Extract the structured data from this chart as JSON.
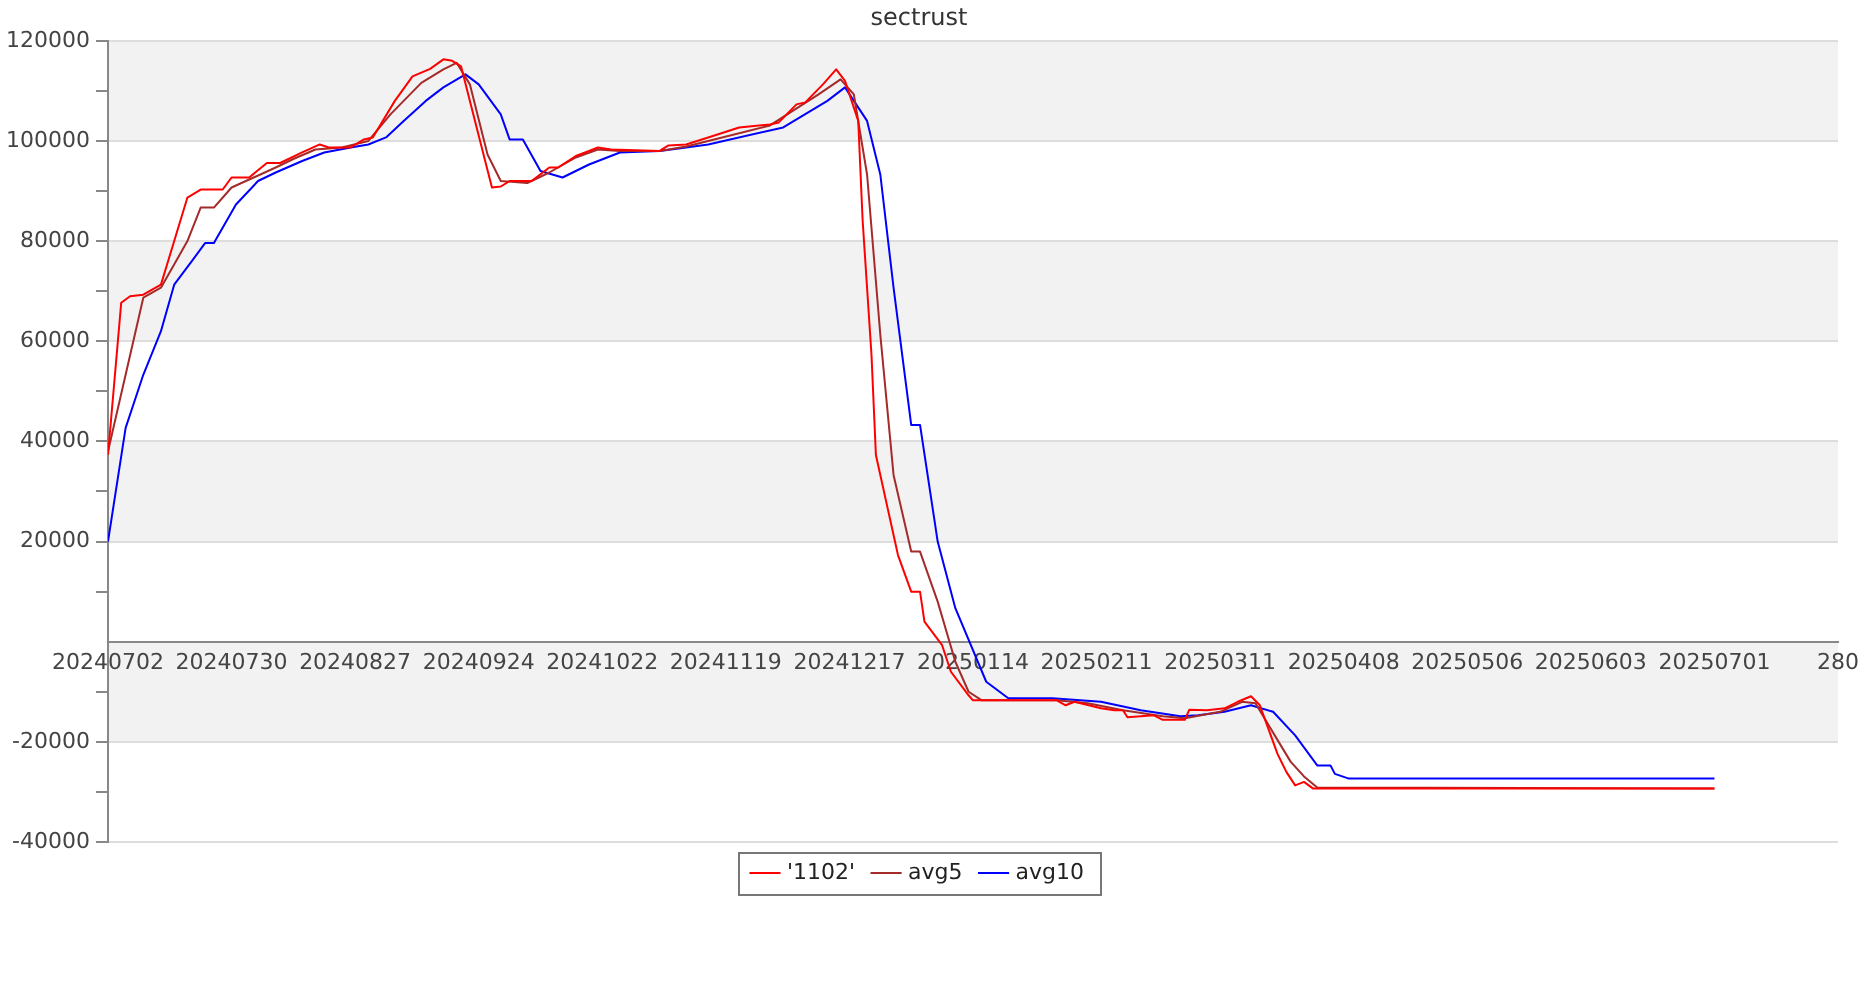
{
  "chart_data": {
    "type": "line",
    "title": "sectrust",
    "legend": "bottom",
    "grid": "y",
    "marker": "none",
    "line_style": "solid",
    "xlim": [
      "2024-07-02",
      "2025-07-29"
    ],
    "xticks": [
      {
        "value": "2024-07-02",
        "label": "20240702"
      },
      {
        "value": "2024-07-30",
        "label": "20240730"
      },
      {
        "value": "2024-08-27",
        "label": "20240827"
      },
      {
        "value": "2024-09-24",
        "label": "20240924"
      },
      {
        "value": "2024-10-22",
        "label": "20241022"
      },
      {
        "value": "2024-11-19",
        "label": "20241119"
      },
      {
        "value": "2024-12-17",
        "label": "20241217"
      },
      {
        "value": "2025-01-14",
        "label": "20250114"
      },
      {
        "value": "2025-02-11",
        "label": "20250211"
      },
      {
        "value": "2025-03-11",
        "label": "20250311"
      },
      {
        "value": "2025-04-08",
        "label": "20250408"
      },
      {
        "value": "2025-05-06",
        "label": "20250506"
      },
      {
        "value": "2025-06-03",
        "label": "20250603"
      },
      {
        "value": "2025-07-01",
        "label": "20250701"
      },
      {
        "value": "2025-07-29",
        "label": "280"
      }
    ],
    "ylim": [
      -40000,
      120000
    ],
    "yticks": [
      -40000,
      {
        "value": -30000,
        "label": null
      },
      -20000,
      {
        "value": -10000,
        "label": null
      },
      {
        "value": 0,
        "label": null
      },
      {
        "value": 10000,
        "label": null
      },
      20000,
      {
        "value": 30000,
        "label": null
      },
      40000,
      {
        "value": 50000,
        "label": null
      },
      60000,
      {
        "value": 70000,
        "label": null
      },
      80000,
      {
        "value": 90000,
        "label": null
      },
      100000,
      {
        "value": 110000,
        "label": null
      },
      120000
    ],
    "series": [
      {
        "name": "'1102'",
        "color": "#ff0000",
        "x": [
          "2024-07-02",
          "2024-07-05",
          "2024-07-07",
          "2024-07-10",
          "2024-07-14",
          "2024-07-20",
          "2024-07-23",
          "2024-07-28",
          "2024-07-30",
          "2024-08-03",
          "2024-08-07",
          "2024-08-10",
          "2024-08-15",
          "2024-08-19",
          "2024-08-21",
          "2024-08-26",
          "2024-08-29",
          "2024-08-31",
          "2024-09-05",
          "2024-09-09",
          "2024-09-13",
          "2024-09-16",
          "2024-09-18",
          "2024-09-20",
          "2024-09-27",
          "2024-09-29",
          "2024-10-01",
          "2024-10-06",
          "2024-10-10",
          "2024-10-12",
          "2024-10-16",
          "2024-10-19",
          "2024-10-21",
          "2024-10-24",
          "2024-11-04",
          "2024-11-06",
          "2024-11-10",
          "2024-11-15",
          "2024-11-22",
          "2024-11-29",
          "2024-12-01",
          "2024-12-05",
          "2024-12-07",
          "2024-12-11",
          "2024-12-14",
          "2024-12-16",
          "2024-12-19",
          "2024-12-20",
          "2024-12-22",
          "2024-12-23",
          "2024-12-26",
          "2024-12-28",
          "2024-12-31",
          "2025-01-02",
          "2025-01-03",
          "2025-01-07",
          "2025-01-09",
          "2025-01-13",
          "2025-01-14",
          "2025-02-02",
          "2025-02-04",
          "2025-02-06",
          "2025-02-12",
          "2025-02-15",
          "2025-02-17",
          "2025-02-18",
          "2025-02-24",
          "2025-02-26",
          "2025-03-03",
          "2025-03-04",
          "2025-03-08",
          "2025-03-12",
          "2025-03-15",
          "2025-03-18",
          "2025-03-20",
          "2025-03-24",
          "2025-03-26",
          "2025-03-28",
          "2025-03-30",
          "2025-04-01",
          "2025-07-01"
        ],
        "values": [
          37300,
          67700,
          69000,
          69300,
          71300,
          88700,
          90300,
          90300,
          92700,
          92700,
          95600,
          95600,
          97700,
          99300,
          98700,
          98700,
          100300,
          100700,
          108000,
          112900,
          114400,
          116300,
          116000,
          114900,
          90700,
          90900,
          92000,
          92000,
          94700,
          94700,
          97000,
          98000,
          98700,
          98300,
          98000,
          99100,
          99300,
          100700,
          102700,
          103300,
          103700,
          107300,
          107700,
          111300,
          114300,
          112000,
          104000,
          84000,
          57300,
          37300,
          25300,
          17300,
          10000,
          10000,
          4000,
          -700,
          -6000,
          -10700,
          -11700,
          -11700,
          -12700,
          -12000,
          -13300,
          -13700,
          -13700,
          -15100,
          -14700,
          -15600,
          -15600,
          -13600,
          -13700,
          -13300,
          -12000,
          -10900,
          -12700,
          -22400,
          -26000,
          -28700,
          -28000,
          -29300,
          -29300
        ]
      },
      {
        "name": "avg5",
        "color": "#a52a2a",
        "x": [
          "2024-07-02",
          "2024-07-10",
          "2024-07-14",
          "2024-07-20",
          "2024-07-23",
          "2024-07-26",
          "2024-07-30",
          "2024-08-04",
          "2024-08-09",
          "2024-08-13",
          "2024-08-18",
          "2024-08-24",
          "2024-08-30",
          "2024-09-04",
          "2024-09-11",
          "2024-09-16",
          "2024-09-19",
          "2024-09-22",
          "2024-09-26",
          "2024-09-29",
          "2024-10-05",
          "2024-10-10",
          "2024-10-16",
          "2024-10-21",
          "2024-10-26",
          "2024-11-04",
          "2024-11-10",
          "2024-11-15",
          "2024-11-29",
          "2024-12-10",
          "2024-12-15",
          "2024-12-18",
          "2024-12-21",
          "2024-12-24",
          "2024-12-27",
          "2024-12-31",
          "2025-01-02",
          "2025-01-06",
          "2025-01-10",
          "2025-01-13",
          "2025-01-16",
          "2025-02-02",
          "2025-02-09",
          "2025-02-17",
          "2025-02-26",
          "2025-03-03",
          "2025-03-11",
          "2025-03-16",
          "2025-03-19",
          "2025-03-22",
          "2025-03-27",
          "2025-03-30",
          "2025-04-02",
          "2025-07-01"
        ],
        "values": [
          38000,
          68700,
          70700,
          80000,
          86700,
          86700,
          90700,
          92700,
          94700,
          96400,
          98300,
          98700,
          100000,
          105300,
          111600,
          114300,
          115600,
          111300,
          97300,
          92000,
          91600,
          93700,
          96700,
          98300,
          98000,
          98000,
          98900,
          100000,
          103100,
          109300,
          112300,
          109300,
          93300,
          61300,
          33300,
          18000,
          18000,
          8000,
          -4000,
          -10000,
          -11700,
          -11700,
          -12300,
          -13700,
          -14900,
          -15300,
          -14000,
          -12000,
          -12300,
          -16700,
          -24000,
          -26900,
          -29100,
          -29300
        ]
      },
      {
        "name": "avg10",
        "color": "#0000ff",
        "x": [
          "2024-07-02",
          "2024-07-06",
          "2024-07-10",
          "2024-07-14",
          "2024-07-17",
          "2024-07-21",
          "2024-07-24",
          "2024-07-26",
          "2024-07-31",
          "2024-08-05",
          "2024-08-09",
          "2024-08-15",
          "2024-08-20",
          "2024-08-26",
          "2024-08-30",
          "2024-09-03",
          "2024-09-07",
          "2024-09-12",
          "2024-09-16",
          "2024-09-21",
          "2024-09-24",
          "2024-09-29",
          "2024-10-01",
          "2024-10-04",
          "2024-10-08",
          "2024-10-13",
          "2024-10-19",
          "2024-10-26",
          "2024-11-04",
          "2024-11-10",
          "2024-11-15",
          "2024-12-02",
          "2024-12-12",
          "2024-12-16",
          "2024-12-21",
          "2024-12-24",
          "2024-12-27",
          "2024-12-31",
          "2025-01-02",
          "2025-01-06",
          "2025-01-10",
          "2025-01-17",
          "2025-01-22",
          "2025-02-01",
          "2025-02-12",
          "2025-02-21",
          "2025-03-02",
          "2025-03-06",
          "2025-03-12",
          "2025-03-18",
          "2025-03-23",
          "2025-03-28",
          "2025-04-02",
          "2025-04-05",
          "2025-04-06",
          "2025-04-09",
          "2025-07-01"
        ],
        "values": [
          20000,
          42700,
          53300,
          62000,
          71300,
          76000,
          79600,
          79600,
          87300,
          92000,
          93700,
          96000,
          97700,
          98700,
          99300,
          100700,
          104000,
          108000,
          110700,
          113300,
          111300,
          105300,
          100300,
          100300,
          94000,
          92700,
          95300,
          97700,
          98000,
          98700,
          99300,
          102700,
          108000,
          110700,
          104000,
          93300,
          70700,
          43300,
          43300,
          20000,
          6700,
          -8000,
          -11300,
          -11300,
          -12000,
          -13700,
          -14900,
          -14700,
          -14000,
          -12700,
          -14000,
          -18700,
          -24700,
          -24700,
          -26400,
          -27300,
          -27300
        ]
      }
    ]
  }
}
